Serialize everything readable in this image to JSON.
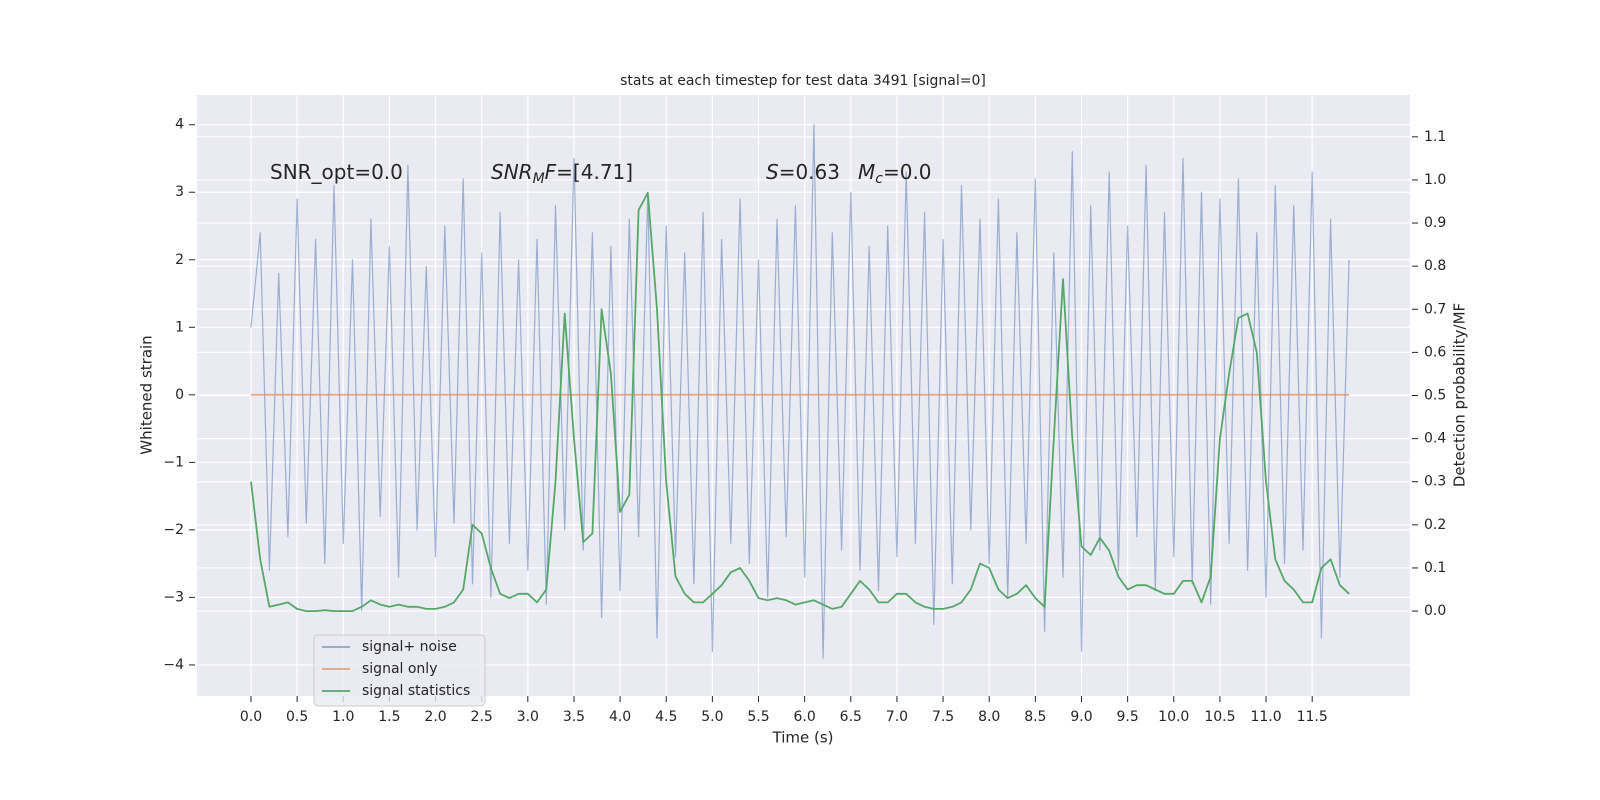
{
  "chart_data": {
    "type": "line",
    "title": "stats at each timestep for test data 3491 [signal=0]",
    "xlabel": "Time (s)",
    "ylabel": "Whitened strain",
    "y2label": "Detection probability/MF",
    "annotations": [
      [
        {
          "text": "SNR_opt=0.0",
          "style": "normal"
        }
      ],
      [
        {
          "text": "SNR",
          "style": "italic"
        },
        {
          "text": "M",
          "style": "sub"
        },
        {
          "text": "F",
          "style": "italic"
        },
        {
          "text": "=[4.71]",
          "style": "normal"
        }
      ],
      [
        {
          "text": "S",
          "style": "italic"
        },
        {
          "text": "=0.63",
          "style": "normal"
        }
      ],
      [
        {
          "text": "M",
          "style": "italic"
        },
        {
          "text": "c",
          "style": "sub"
        },
        {
          "text": "=0.0",
          "style": "normal"
        }
      ]
    ],
    "x": [
      0.0,
      0.1,
      0.2,
      0.3,
      0.4,
      0.5,
      0.6,
      0.7,
      0.8,
      0.9,
      1.0,
      1.1,
      1.2,
      1.3,
      1.4,
      1.5,
      1.6,
      1.7,
      1.8,
      1.9,
      2.0,
      2.1,
      2.2,
      2.3,
      2.4,
      2.5,
      2.6,
      2.7,
      2.8,
      2.9,
      3.0,
      3.1,
      3.2,
      3.3,
      3.4,
      3.5,
      3.6,
      3.7,
      3.8,
      3.9,
      4.0,
      4.1,
      4.2,
      4.3,
      4.4,
      4.5,
      4.6,
      4.7,
      4.8,
      4.9,
      5.0,
      5.1,
      5.2,
      5.3,
      5.4,
      5.5,
      5.6,
      5.7,
      5.8,
      5.9,
      6.0,
      6.1,
      6.2,
      6.3,
      6.4,
      6.5,
      6.6,
      6.7,
      6.8,
      6.9,
      7.0,
      7.1,
      7.2,
      7.3,
      7.4,
      7.5,
      7.6,
      7.7,
      7.8,
      7.9,
      8.0,
      8.1,
      8.2,
      8.3,
      8.4,
      8.5,
      8.6,
      8.7,
      8.8,
      8.9,
      9.0,
      9.1,
      9.2,
      9.3,
      9.4,
      9.5,
      9.6,
      9.7,
      9.8,
      9.9,
      10.0,
      10.1,
      10.2,
      10.3,
      10.4,
      10.5,
      10.6,
      10.7,
      10.8,
      10.9,
      11.0,
      11.1,
      11.2,
      11.3,
      11.4,
      11.5,
      11.6,
      11.7,
      11.8,
      11.9
    ],
    "series": [
      {
        "name": "signal+ noise",
        "color": "#4c72b0",
        "values": [
          1.0,
          2.4,
          -2.6,
          1.8,
          -2.1,
          2.9,
          -1.9,
          2.3,
          -2.5,
          3.1,
          -2.2,
          2.0,
          -3.2,
          2.6,
          -1.8,
          2.2,
          -2.7,
          3.4,
          -2.0,
          1.9,
          -2.4,
          2.5,
          -1.9,
          3.2,
          -2.8,
          2.1,
          -3.0,
          2.7,
          -2.2,
          2.0,
          -2.6,
          2.3,
          -3.1,
          2.8,
          -2.0,
          3.5,
          -2.3,
          2.4,
          -3.3,
          2.2,
          -2.9,
          2.6,
          -2.1,
          3.0,
          -3.6,
          2.5,
          -2.4,
          2.1,
          -2.8,
          2.7,
          -3.8,
          2.3,
          -2.2,
          2.9,
          -2.5,
          2.0,
          -3.0,
          2.6,
          -2.1,
          2.8,
          -2.7,
          4.0,
          -3.9,
          2.4,
          -2.3,
          3.0,
          -2.6,
          2.2,
          -2.9,
          2.5,
          -2.4,
          3.3,
          -2.2,
          2.7,
          -3.4,
          2.3,
          -2.8,
          3.1,
          -2.0,
          2.6,
          -2.5,
          2.9,
          -3.0,
          2.4,
          -2.2,
          3.2,
          -3.5,
          2.1,
          -2.7,
          3.6,
          -3.8,
          2.8,
          -2.3,
          3.3,
          -2.6,
          2.5,
          -2.1,
          3.4,
          -2.9,
          2.7,
          -2.4,
          3.5,
          -2.8,
          3.0,
          -3.1,
          2.9,
          -2.2,
          3.2,
          -2.6,
          2.4,
          -3.0,
          3.1,
          -2.5,
          2.8,
          -2.3,
          3.3,
          -3.6,
          2.6,
          -2.7,
          2.0
        ]
      },
      {
        "name": "signal only",
        "color": "#dd8452",
        "x": [
          0.0,
          11.9
        ],
        "values": [
          0,
          0
        ]
      },
      {
        "name": "signal statistics",
        "color": "#55a868",
        "axis": "y2",
        "values": [
          0.3,
          0.12,
          0.01,
          0.015,
          0.02,
          0.005,
          0.0,
          0.0,
          0.002,
          0.0,
          0.0,
          0.0,
          0.01,
          0.025,
          0.015,
          0.01,
          0.015,
          0.01,
          0.01,
          0.005,
          0.005,
          0.01,
          0.02,
          0.05,
          0.2,
          0.18,
          0.1,
          0.04,
          0.03,
          0.04,
          0.04,
          0.02,
          0.05,
          0.3,
          0.69,
          0.4,
          0.16,
          0.18,
          0.7,
          0.55,
          0.23,
          0.27,
          0.93,
          0.97,
          0.7,
          0.3,
          0.08,
          0.04,
          0.02,
          0.02,
          0.04,
          0.06,
          0.09,
          0.1,
          0.07,
          0.03,
          0.025,
          0.03,
          0.025,
          0.015,
          0.02,
          0.025,
          0.015,
          0.005,
          0.01,
          0.04,
          0.07,
          0.05,
          0.02,
          0.02,
          0.04,
          0.04,
          0.02,
          0.01,
          0.005,
          0.005,
          0.01,
          0.02,
          0.05,
          0.11,
          0.1,
          0.05,
          0.03,
          0.04,
          0.06,
          0.03,
          0.01,
          0.4,
          0.77,
          0.4,
          0.15,
          0.13,
          0.17,
          0.14,
          0.08,
          0.05,
          0.06,
          0.06,
          0.05,
          0.04,
          0.04,
          0.07,
          0.07,
          0.02,
          0.08,
          0.4,
          0.55,
          0.68,
          0.69,
          0.6,
          0.3,
          0.12,
          0.07,
          0.05,
          0.02,
          0.02,
          0.1,
          0.12,
          0.06,
          0.04
        ]
      }
    ],
    "xlim": [
      -0.585,
      12.56
    ],
    "ylim": [
      -4.46,
      4.44
    ],
    "y2lim": [
      -0.197,
      1.197
    ],
    "xticks": [
      {
        "value": 0,
        "label": "0.0"
      },
      0.5,
      {
        "value": 1,
        "label": "1.0"
      },
      1.5,
      {
        "value": 2,
        "label": "2.0"
      },
      2.5,
      {
        "value": 3,
        "label": "3.0"
      },
      3.5,
      {
        "value": 4,
        "label": "4.0"
      },
      4.5,
      {
        "value": 5,
        "label": "5.0"
      },
      5.5,
      {
        "value": 6,
        "label": "6.0"
      },
      6.5,
      {
        "value": 7,
        "label": "7.0"
      },
      7.5,
      {
        "value": 8,
        "label": "8.0"
      },
      8.5,
      {
        "value": 9,
        "label": "9.0"
      },
      9.5,
      {
        "value": 10,
        "label": "10.0"
      },
      10.5,
      {
        "value": 11,
        "label": "11.0"
      },
      11.5
    ],
    "yticks": [
      {
        "value": -4,
        "label": "−4"
      },
      {
        "value": -3,
        "label": "−3"
      },
      {
        "value": -2,
        "label": "−2"
      },
      {
        "value": -1,
        "label": "−1"
      },
      0,
      1,
      2,
      3,
      4
    ],
    "y2ticks": [
      {
        "value": 0,
        "label": "0.0"
      },
      0.1,
      0.2,
      0.3,
      0.4,
      0.5,
      0.6,
      0.7,
      0.8,
      0.9,
      {
        "value": 1,
        "label": "1.0"
      },
      1.1
    ],
    "grid": true,
    "legend": "lower left"
  }
}
